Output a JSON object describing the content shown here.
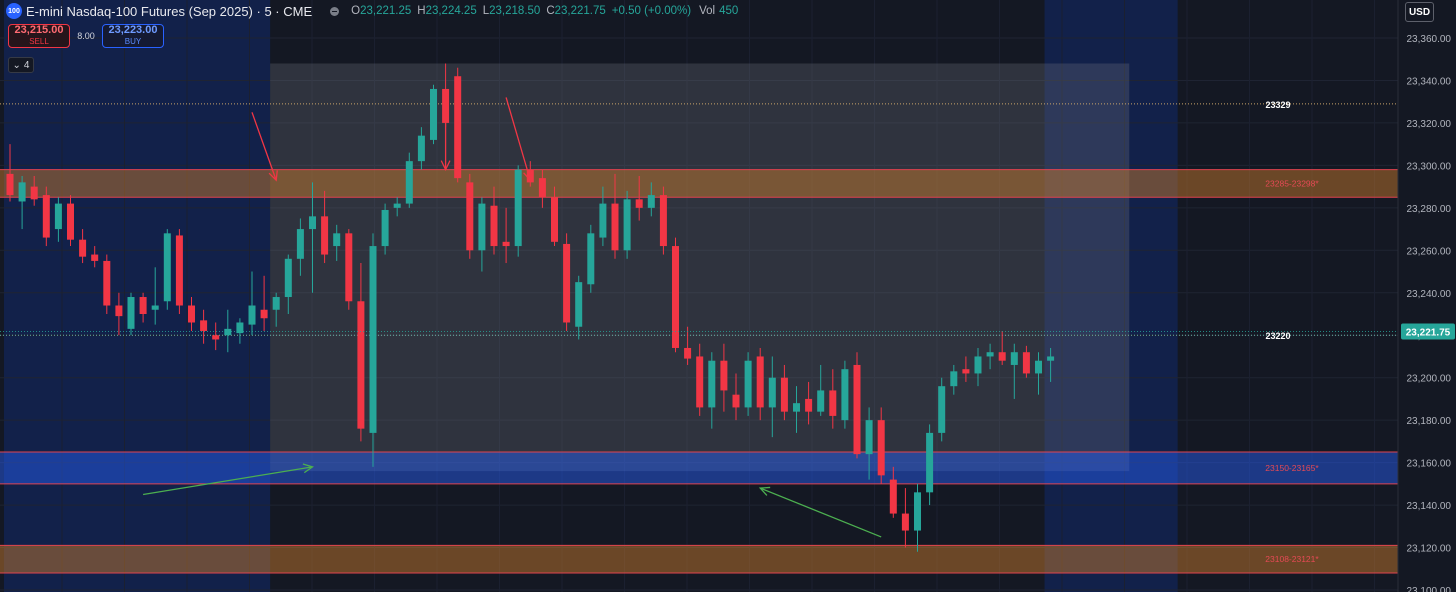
{
  "header": {
    "symbol_icon_label": "100",
    "title": "E-mini Nasdaq-100 Futures (Sep 2025) · 5 · CME",
    "ohlc": [
      {
        "key": "O",
        "value": "23,221.25"
      },
      {
        "key": "H",
        "value": "23,224.25"
      },
      {
        "key": "L",
        "value": "23,218.50"
      },
      {
        "key": "C",
        "value": "23,221.75"
      }
    ],
    "change": "+0.50 (+0.00%)",
    "vol_label": "Vol",
    "vol_value": "450"
  },
  "trade": {
    "sell_price": "23,215.00",
    "sell_label": "SELL",
    "spread": "8.00",
    "buy_price": "23,223.00",
    "buy_label": "BUY"
  },
  "indicators_toggle": "4",
  "currency": "USD",
  "colors": {
    "background": "#141823",
    "session_background": "#12214a",
    "up": "#26a69a",
    "down": "#f23645",
    "resistance_zone": "#7a4a22",
    "support_zone": "#203a7a",
    "arrow_red": "#f23645",
    "arrow_green": "#4caf50"
  },
  "chart_data": {
    "type": "candlestick",
    "price_axis": {
      "ticks": [
        "23,360.00",
        "23,340.00",
        "23,320.00",
        "23,300.00",
        "23,280.00",
        "23,260.00",
        "23,240.00",
        "23,220.00",
        "23,200.00",
        "23,180.00",
        "23,160.00",
        "23,140.00",
        "23,120.00",
        "23,100.00"
      ],
      "range": [
        23100,
        23365
      ]
    },
    "last_price": {
      "value": 23221.75,
      "label": "23,221.75"
    },
    "horizontal_levels": [
      {
        "value": 23329,
        "label": "23329",
        "style": "dotted"
      },
      {
        "value": 23220,
        "label": "23220",
        "style": "dotted"
      }
    ],
    "zones": [
      {
        "low": 23285,
        "high": 23298,
        "label": "23285-23298*",
        "kind": "resistance"
      },
      {
        "low": 23150,
        "high": 23165,
        "label": "23150-23165*",
        "kind": "support"
      },
      {
        "low": 23108,
        "high": 23121,
        "label": "23108-23121*",
        "kind": "resistance"
      }
    ],
    "range_box": {
      "start_bar": 22,
      "end_bar": 93,
      "low": 23156,
      "high": 23348
    },
    "session_shading": [
      {
        "start_bar": 0,
        "end_bar": 21
      },
      {
        "start_bar": 86,
        "end_bar": 96
      }
    ],
    "arrows": [
      {
        "color": "red",
        "from": [
          20,
          23325
        ],
        "to": [
          22,
          23293
        ]
      },
      {
        "color": "red",
        "from": [
          36,
          23330
        ],
        "to": [
          36,
          23298
        ]
      },
      {
        "color": "red",
        "from": [
          41,
          23332
        ],
        "to": [
          43,
          23293
        ]
      },
      {
        "color": "green",
        "from": [
          11,
          23145
        ],
        "to": [
          25,
          23158
        ]
      },
      {
        "color": "green",
        "from": [
          72,
          23125
        ],
        "to": [
          62,
          23148
        ]
      }
    ],
    "candles": [
      {
        "o": 23296,
        "h": 23310,
        "l": 23283,
        "c": 23286
      },
      {
        "o": 23283,
        "h": 23295,
        "l": 23270,
        "c": 23292
      },
      {
        "o": 23290,
        "h": 23295,
        "l": 23281,
        "c": 23284
      },
      {
        "o": 23286,
        "h": 23290,
        "l": 23262,
        "c": 23266
      },
      {
        "o": 23270,
        "h": 23285,
        "l": 23264,
        "c": 23282
      },
      {
        "o": 23282,
        "h": 23286,
        "l": 23262,
        "c": 23265
      },
      {
        "o": 23265,
        "h": 23270,
        "l": 23254,
        "c": 23257
      },
      {
        "o": 23258,
        "h": 23262,
        "l": 23252,
        "c": 23255
      },
      {
        "o": 23255,
        "h": 23258,
        "l": 23230,
        "c": 23234
      },
      {
        "o": 23234,
        "h": 23240,
        "l": 23220,
        "c": 23229
      },
      {
        "o": 23223,
        "h": 23240,
        "l": 23220,
        "c": 23238
      },
      {
        "o": 23238,
        "h": 23240,
        "l": 23226,
        "c": 23230
      },
      {
        "o": 23232,
        "h": 23252,
        "l": 23225,
        "c": 23234
      },
      {
        "o": 23236,
        "h": 23270,
        "l": 23232,
        "c": 23268
      },
      {
        "o": 23267,
        "h": 23270,
        "l": 23230,
        "c": 23234
      },
      {
        "o": 23234,
        "h": 23238,
        "l": 23222,
        "c": 23226
      },
      {
        "o": 23227,
        "h": 23232,
        "l": 23216,
        "c": 23222
      },
      {
        "o": 23220,
        "h": 23226,
        "l": 23213,
        "c": 23218
      },
      {
        "o": 23220,
        "h": 23232,
        "l": 23212,
        "c": 23223
      },
      {
        "o": 23221,
        "h": 23228,
        "l": 23216,
        "c": 23226
      },
      {
        "o": 23225,
        "h": 23250,
        "l": 23220,
        "c": 23234
      },
      {
        "o": 23232,
        "h": 23248,
        "l": 23222,
        "c": 23228
      },
      {
        "o": 23232,
        "h": 23240,
        "l": 23224,
        "c": 23238
      },
      {
        "o": 23238,
        "h": 23258,
        "l": 23230,
        "c": 23256
      },
      {
        "o": 23256,
        "h": 23275,
        "l": 23248,
        "c": 23270
      },
      {
        "o": 23270,
        "h": 23292,
        "l": 23240,
        "c": 23276
      },
      {
        "o": 23276,
        "h": 23288,
        "l": 23254,
        "c": 23258
      },
      {
        "o": 23262,
        "h": 23272,
        "l": 23255,
        "c": 23268
      },
      {
        "o": 23268,
        "h": 23270,
        "l": 23232,
        "c": 23236
      },
      {
        "o": 23236,
        "h": 23254,
        "l": 23170,
        "c": 23176
      },
      {
        "o": 23174,
        "h": 23268,
        "l": 23158,
        "c": 23262
      },
      {
        "o": 23262,
        "h": 23282,
        "l": 23258,
        "c": 23279
      },
      {
        "o": 23280,
        "h": 23285,
        "l": 23276,
        "c": 23282
      },
      {
        "o": 23282,
        "h": 23306,
        "l": 23280,
        "c": 23302
      },
      {
        "o": 23302,
        "h": 23318,
        "l": 23298,
        "c": 23314
      },
      {
        "o": 23312,
        "h": 23338,
        "l": 23310,
        "c": 23336
      },
      {
        "o": 23336,
        "h": 23348,
        "l": 23318,
        "c": 23320
      },
      {
        "o": 23342,
        "h": 23346,
        "l": 23292,
        "c": 23294
      },
      {
        "o": 23292,
        "h": 23296,
        "l": 23256,
        "c": 23260
      },
      {
        "o": 23260,
        "h": 23285,
        "l": 23250,
        "c": 23282
      },
      {
        "o": 23281,
        "h": 23290,
        "l": 23258,
        "c": 23262
      },
      {
        "o": 23264,
        "h": 23280,
        "l": 23254,
        "c": 23262
      },
      {
        "o": 23262,
        "h": 23300,
        "l": 23257,
        "c": 23298
      },
      {
        "o": 23298,
        "h": 23302,
        "l": 23290,
        "c": 23292
      },
      {
        "o": 23294,
        "h": 23298,
        "l": 23280,
        "c": 23285
      },
      {
        "o": 23285,
        "h": 23290,
        "l": 23262,
        "c": 23264
      },
      {
        "o": 23263,
        "h": 23268,
        "l": 23222,
        "c": 23226
      },
      {
        "o": 23224,
        "h": 23248,
        "l": 23218,
        "c": 23245
      },
      {
        "o": 23244,
        "h": 23272,
        "l": 23240,
        "c": 23268
      },
      {
        "o": 23266,
        "h": 23290,
        "l": 23262,
        "c": 23282
      },
      {
        "o": 23282,
        "h": 23296,
        "l": 23256,
        "c": 23260
      },
      {
        "o": 23260,
        "h": 23288,
        "l": 23256,
        "c": 23284
      },
      {
        "o": 23284,
        "h": 23295,
        "l": 23274,
        "c": 23280
      },
      {
        "o": 23280,
        "h": 23292,
        "l": 23276,
        "c": 23286
      },
      {
        "o": 23286,
        "h": 23290,
        "l": 23258,
        "c": 23262
      },
      {
        "o": 23262,
        "h": 23266,
        "l": 23212,
        "c": 23214
      },
      {
        "o": 23214,
        "h": 23224,
        "l": 23206,
        "c": 23209
      },
      {
        "o": 23210,
        "h": 23216,
        "l": 23182,
        "c": 23186
      },
      {
        "o": 23186,
        "h": 23212,
        "l": 23176,
        "c": 23208
      },
      {
        "o": 23208,
        "h": 23216,
        "l": 23184,
        "c": 23194
      },
      {
        "o": 23192,
        "h": 23202,
        "l": 23180,
        "c": 23186
      },
      {
        "o": 23186,
        "h": 23212,
        "l": 23182,
        "c": 23208
      },
      {
        "o": 23210,
        "h": 23214,
        "l": 23180,
        "c": 23186
      },
      {
        "o": 23186,
        "h": 23210,
        "l": 23172,
        "c": 23200
      },
      {
        "o": 23200,
        "h": 23206,
        "l": 23180,
        "c": 23184
      },
      {
        "o": 23184,
        "h": 23196,
        "l": 23174,
        "c": 23188
      },
      {
        "o": 23190,
        "h": 23198,
        "l": 23178,
        "c": 23184
      },
      {
        "o": 23184,
        "h": 23206,
        "l": 23182,
        "c": 23194
      },
      {
        "o": 23194,
        "h": 23204,
        "l": 23176,
        "c": 23182
      },
      {
        "o": 23180,
        "h": 23208,
        "l": 23176,
        "c": 23204
      },
      {
        "o": 23206,
        "h": 23212,
        "l": 23162,
        "c": 23164
      },
      {
        "o": 23164,
        "h": 23186,
        "l": 23152,
        "c": 23180
      },
      {
        "o": 23180,
        "h": 23186,
        "l": 23150,
        "c": 23154
      },
      {
        "o": 23152,
        "h": 23158,
        "l": 23134,
        "c": 23136
      },
      {
        "o": 23136,
        "h": 23148,
        "l": 23120,
        "c": 23128
      },
      {
        "o": 23128,
        "h": 23150,
        "l": 23118,
        "c": 23146
      },
      {
        "o": 23146,
        "h": 23178,
        "l": 23140,
        "c": 23174
      },
      {
        "o": 23174,
        "h": 23200,
        "l": 23170,
        "c": 23196
      },
      {
        "o": 23196,
        "h": 23206,
        "l": 23192,
        "c": 23203
      },
      {
        "o": 23204,
        "h": 23210,
        "l": 23198,
        "c": 23202
      },
      {
        "o": 23202,
        "h": 23214,
        "l": 23196,
        "c": 23210
      },
      {
        "o": 23210,
        "h": 23216,
        "l": 23204,
        "c": 23212
      },
      {
        "o": 23212,
        "h": 23222,
        "l": 23206,
        "c": 23208
      },
      {
        "o": 23206,
        "h": 23216,
        "l": 23190,
        "c": 23212
      },
      {
        "o": 23212,
        "h": 23215,
        "l": 23200,
        "c": 23202
      },
      {
        "o": 23202,
        "h": 23212,
        "l": 23192,
        "c": 23208
      },
      {
        "o": 23208,
        "h": 23214,
        "l": 23198,
        "c": 23210
      }
    ]
  }
}
